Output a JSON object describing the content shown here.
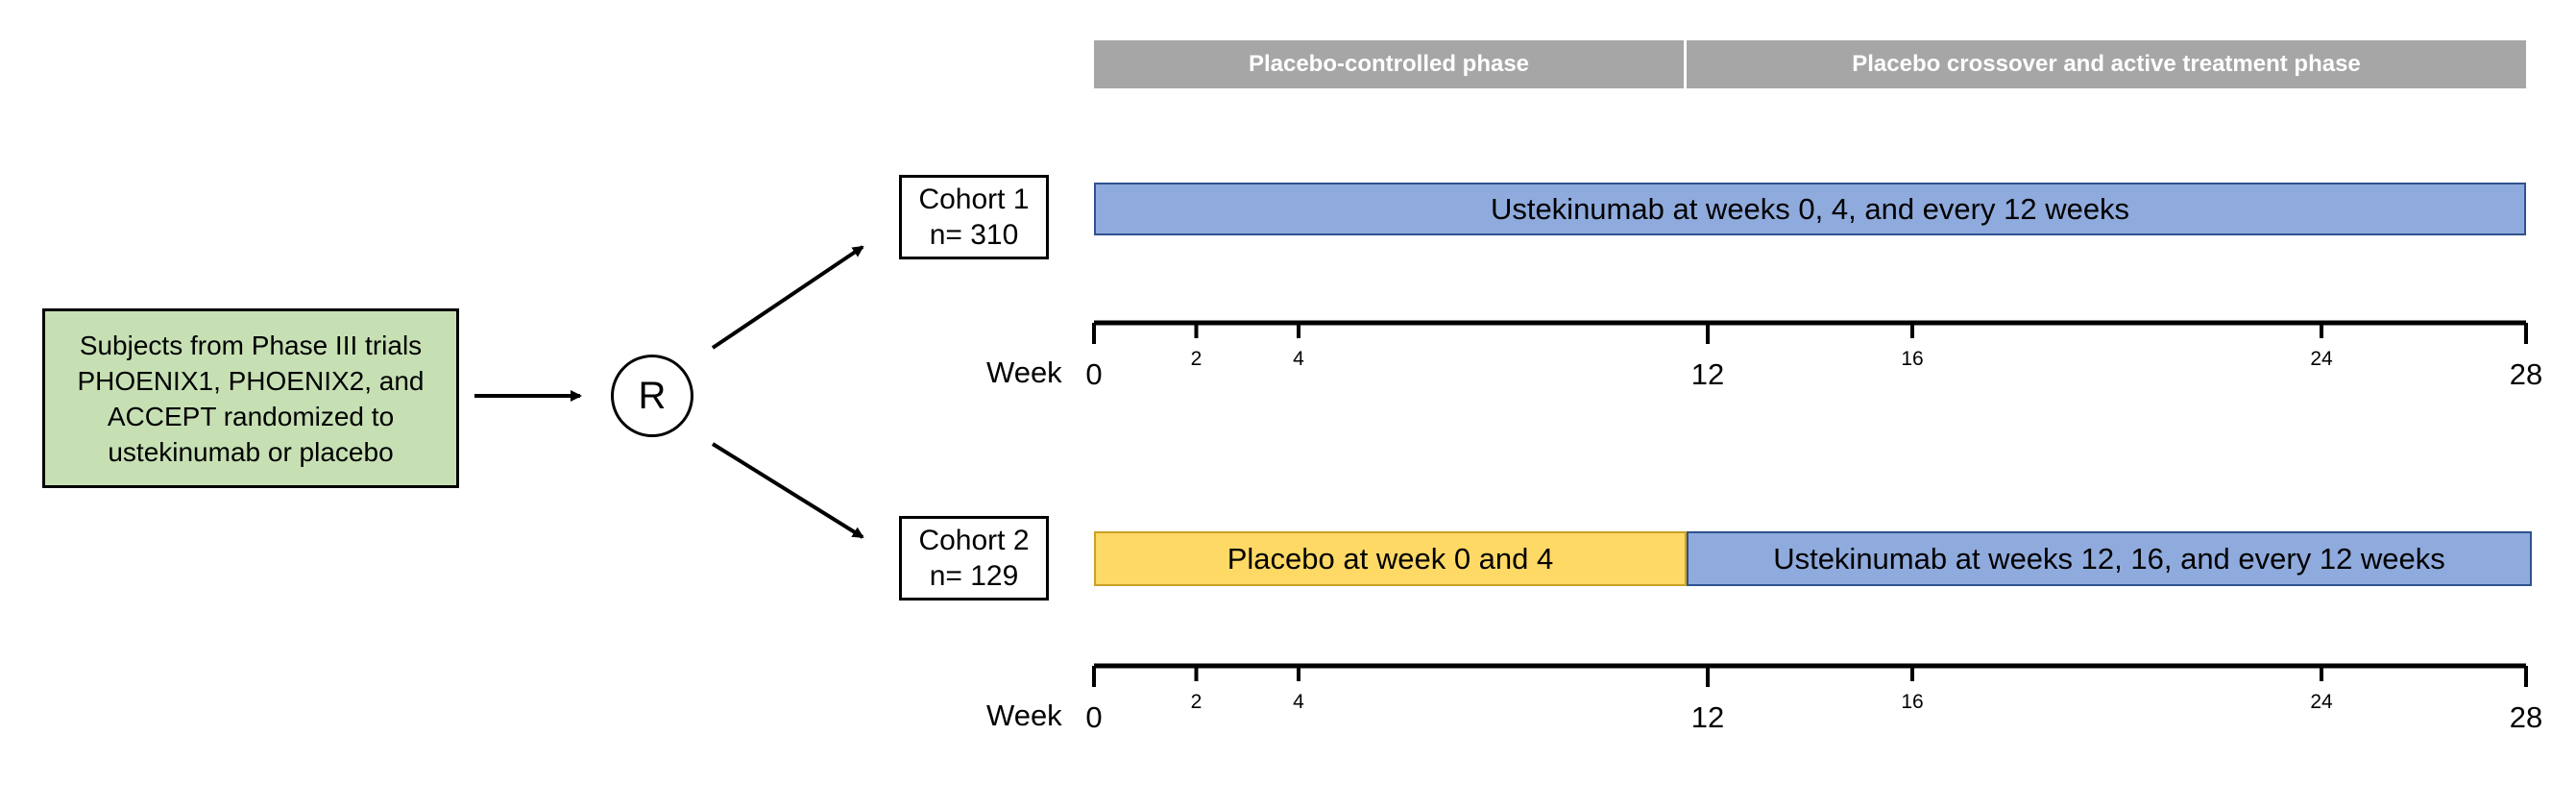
{
  "phases": {
    "left": "Placebo-controlled phase",
    "right": "Placebo crossover and active treatment phase"
  },
  "subjects_box": {
    "line1": "Subjects from Phase III trials",
    "line2": "PHOENIX1,  PHOENIX2, and",
    "line3": "ACCEPT randomized to",
    "line4": "ustekinumab or placebo"
  },
  "randomize_label": "R",
  "cohort1": {
    "title": "Cohort 1",
    "n": "n= 310",
    "bar": "Ustekinumab at weeks 0, 4, and every 12 weeks"
  },
  "cohort2": {
    "title": "Cohort 2",
    "n": "n= 129",
    "placebo_bar": "Placebo at week 0 and 4",
    "ust_bar": "Ustekinumab at weeks 12, 16, and every 12 weeks"
  },
  "timeline": {
    "label": "Week",
    "ticks": [
      {
        "week": 0,
        "label": "0",
        "size": "big"
      },
      {
        "week": 2,
        "label": "2",
        "size": "small"
      },
      {
        "week": 4,
        "label": "4",
        "size": "small"
      },
      {
        "week": 12,
        "label": "12",
        "size": "big"
      },
      {
        "week": 16,
        "label": "16",
        "size": "small"
      },
      {
        "week": 24,
        "label": "24",
        "size": "small"
      },
      {
        "week": 28,
        "label": "28",
        "size": "big"
      }
    ]
  },
  "colors": {
    "subjects_fill": "#c6e0b4",
    "ustekinumab_fill": "#8faadc",
    "placebo_fill": "#ffd966",
    "phase_header_fill": "#a6a6a6"
  }
}
